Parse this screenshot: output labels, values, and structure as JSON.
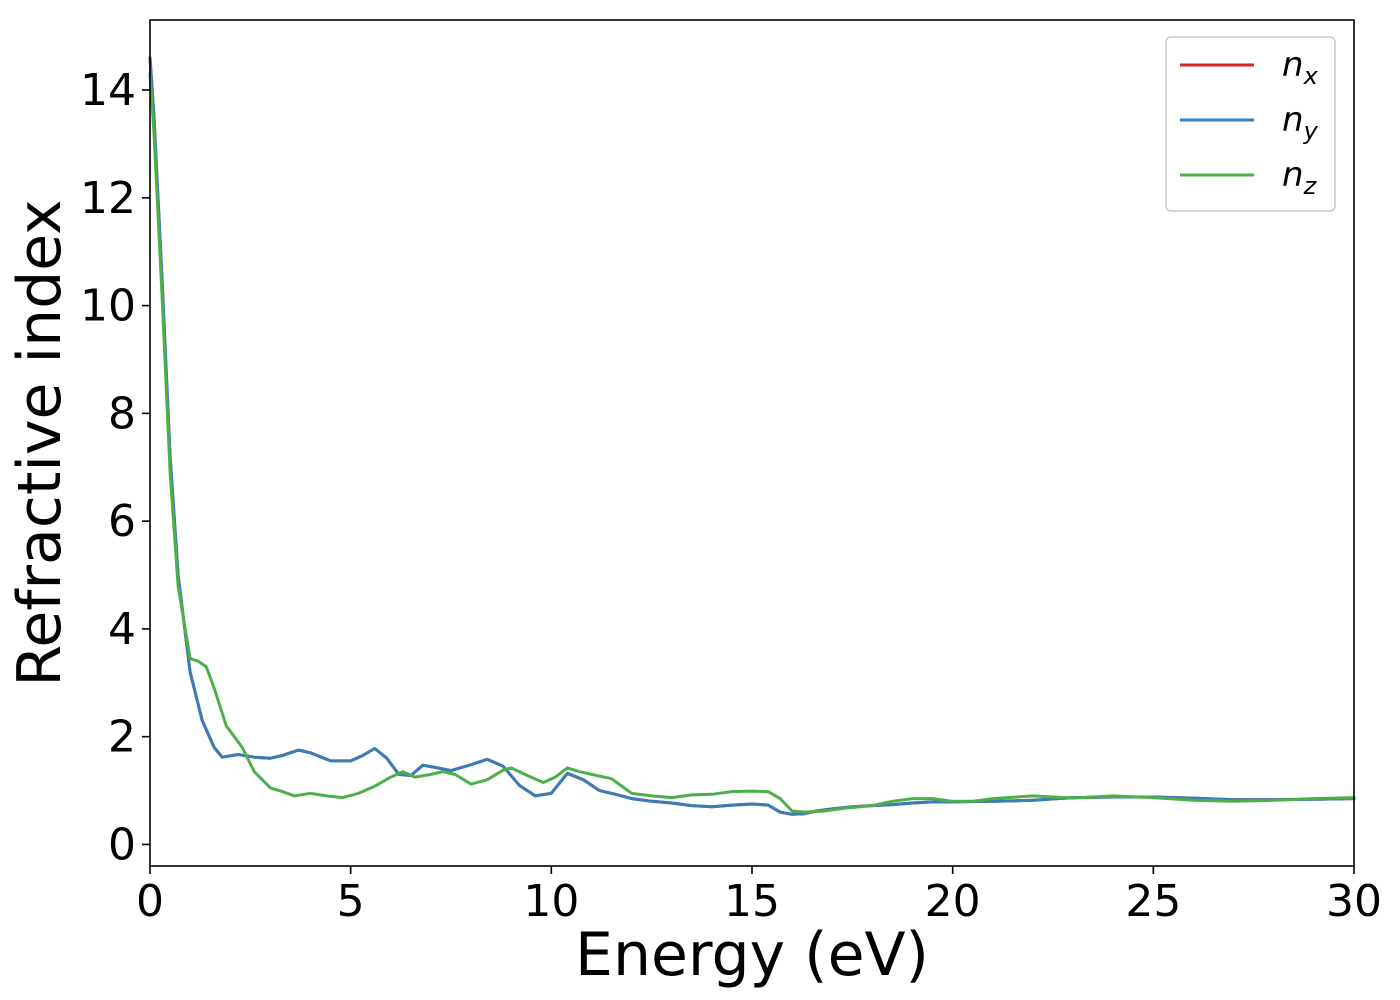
{
  "chart_data": {
    "type": "line",
    "xlabel": "Energy (eV)",
    "ylabel": "Refractive index",
    "xlim": [
      0,
      30
    ],
    "ylim": [
      -0.4,
      15.3
    ],
    "xticks": [
      0,
      5,
      10,
      15,
      20,
      25,
      30
    ],
    "yticks": [
      0,
      2,
      4,
      6,
      8,
      10,
      12,
      14
    ],
    "grid": false,
    "legend_position": "top-right",
    "series": [
      {
        "name": "n",
        "subscript": "x",
        "color": "#d62728",
        "x": [
          0,
          0.1,
          0.3,
          0.5,
          0.7,
          1.0,
          1.3,
          1.6,
          1.8,
          2.2,
          2.6,
          3.0,
          3.3,
          3.7,
          4.0,
          4.5,
          5.0,
          5.3,
          5.6,
          5.9,
          6.2,
          6.5,
          6.8,
          7.1,
          7.5,
          8.0,
          8.4,
          8.8,
          9.2,
          9.6,
          10.0,
          10.4,
          10.8,
          11.2,
          11.6,
          12.0,
          12.5,
          13.0,
          13.5,
          14.0,
          14.5,
          15.0,
          15.4,
          15.7,
          16.0,
          16.3,
          16.6,
          17.0,
          17.5,
          18.0,
          18.5,
          19.0,
          19.5,
          20.0,
          21.0,
          22.0,
          23.0,
          24.0,
          25.0,
          26.0,
          27.0,
          28.0,
          29.0,
          30.0
        ],
        "values": [
          14.6,
          13.5,
          10.5,
          7.2,
          5.0,
          3.2,
          2.3,
          1.8,
          1.62,
          1.67,
          1.62,
          1.6,
          1.65,
          1.75,
          1.7,
          1.55,
          1.55,
          1.65,
          1.78,
          1.6,
          1.3,
          1.28,
          1.47,
          1.43,
          1.37,
          1.48,
          1.58,
          1.45,
          1.1,
          0.9,
          0.95,
          1.32,
          1.2,
          1.0,
          0.93,
          0.85,
          0.8,
          0.77,
          0.72,
          0.7,
          0.73,
          0.75,
          0.73,
          0.6,
          0.56,
          0.57,
          0.62,
          0.66,
          0.7,
          0.72,
          0.74,
          0.77,
          0.79,
          0.79,
          0.8,
          0.82,
          0.87,
          0.88,
          0.88,
          0.86,
          0.83,
          0.83,
          0.84,
          0.85
        ]
      },
      {
        "name": "n",
        "subscript": "y",
        "color": "#377eb8",
        "x": [
          0,
          0.1,
          0.3,
          0.5,
          0.7,
          1.0,
          1.3,
          1.6,
          1.8,
          2.2,
          2.6,
          3.0,
          3.3,
          3.7,
          4.0,
          4.5,
          5.0,
          5.3,
          5.6,
          5.9,
          6.2,
          6.5,
          6.8,
          7.1,
          7.5,
          8.0,
          8.4,
          8.8,
          9.2,
          9.6,
          10.0,
          10.4,
          10.8,
          11.2,
          11.6,
          12.0,
          12.5,
          13.0,
          13.5,
          14.0,
          14.5,
          15.0,
          15.4,
          15.7,
          16.0,
          16.3,
          16.6,
          17.0,
          17.5,
          18.0,
          18.5,
          19.0,
          19.5,
          20.0,
          21.0,
          22.0,
          23.0,
          24.0,
          25.0,
          26.0,
          27.0,
          28.0,
          29.0,
          30.0
        ],
        "values": [
          14.6,
          13.5,
          10.5,
          7.2,
          5.0,
          3.2,
          2.3,
          1.8,
          1.62,
          1.67,
          1.62,
          1.6,
          1.65,
          1.75,
          1.7,
          1.55,
          1.55,
          1.65,
          1.78,
          1.6,
          1.3,
          1.28,
          1.47,
          1.43,
          1.37,
          1.48,
          1.58,
          1.45,
          1.1,
          0.9,
          0.95,
          1.32,
          1.2,
          1.0,
          0.93,
          0.85,
          0.8,
          0.77,
          0.72,
          0.7,
          0.73,
          0.75,
          0.73,
          0.6,
          0.56,
          0.57,
          0.62,
          0.66,
          0.7,
          0.72,
          0.74,
          0.77,
          0.79,
          0.79,
          0.8,
          0.82,
          0.87,
          0.88,
          0.88,
          0.86,
          0.83,
          0.83,
          0.84,
          0.85
        ]
      },
      {
        "name": "n",
        "subscript": "z",
        "color": "#4daf4a",
        "x": [
          0,
          0.1,
          0.3,
          0.5,
          0.7,
          1.0,
          1.2,
          1.4,
          1.6,
          1.9,
          2.3,
          2.6,
          3.0,
          3.3,
          3.6,
          4.0,
          4.4,
          4.8,
          5.2,
          5.6,
          6.0,
          6.3,
          6.6,
          7.0,
          7.3,
          7.6,
          8.0,
          8.4,
          8.8,
          9.0,
          9.4,
          9.8,
          10.1,
          10.4,
          10.7,
          11.0,
          11.5,
          12.0,
          12.5,
          13.0,
          13.5,
          14.0,
          14.5,
          15.0,
          15.4,
          15.7,
          16.0,
          16.3,
          16.8,
          17.3,
          18.0,
          18.5,
          19.0,
          19.5,
          20.0,
          20.5,
          21.0,
          22.0,
          23.0,
          24.0,
          25.0,
          26.0,
          27.0,
          28.0,
          29.0,
          30.0
        ],
        "values": [
          14.3,
          13.2,
          10.2,
          6.9,
          4.8,
          3.45,
          3.4,
          3.3,
          2.9,
          2.2,
          1.8,
          1.35,
          1.05,
          0.98,
          0.9,
          0.95,
          0.9,
          0.87,
          0.95,
          1.08,
          1.25,
          1.35,
          1.25,
          1.3,
          1.35,
          1.3,
          1.12,
          1.2,
          1.38,
          1.42,
          1.28,
          1.15,
          1.25,
          1.42,
          1.35,
          1.3,
          1.22,
          0.95,
          0.9,
          0.87,
          0.92,
          0.93,
          0.98,
          0.99,
          0.98,
          0.85,
          0.62,
          0.6,
          0.62,
          0.67,
          0.72,
          0.8,
          0.85,
          0.85,
          0.8,
          0.8,
          0.85,
          0.9,
          0.86,
          0.9,
          0.87,
          0.82,
          0.8,
          0.82,
          0.85,
          0.87
        ]
      }
    ]
  }
}
